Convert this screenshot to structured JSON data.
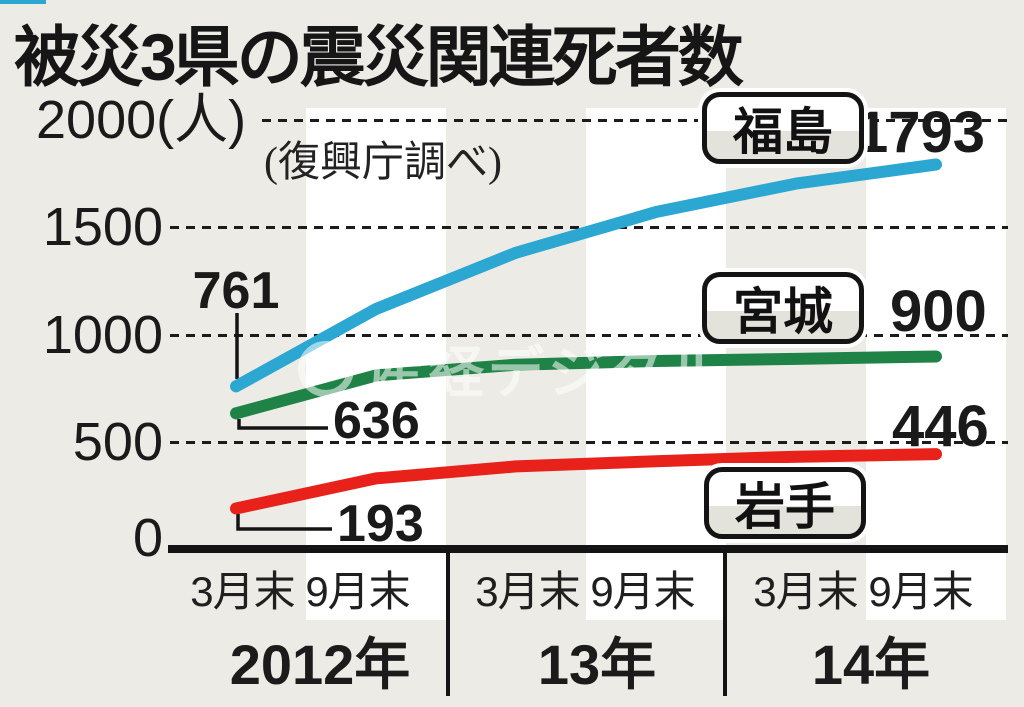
{
  "title": "被災3県の震災関連死者数",
  "source_note": "(復興庁調べ)",
  "watermark": "産経デジタル",
  "y_axis": {
    "labels": [
      "2000(人)",
      "1500",
      "1000",
      "500",
      "0"
    ]
  },
  "x_axis": {
    "tick_row": [
      "3月末 9月末",
      "3月末 9月末",
      "3月末 9月末"
    ],
    "year_row": [
      "2012年",
      "13年",
      "14年"
    ]
  },
  "annotations": {
    "fukushima_start": "761",
    "fukushima_end": "1793",
    "miyagi_start": "636",
    "miyagi_end": "900",
    "iwate_start": "193",
    "iwate_end": "446"
  },
  "colors": {
    "background": "#ECEBE5",
    "stripe": "#FFFFFF",
    "fukushima_line": "#2BA7D2",
    "miyagi_line": "#1F8347",
    "iwate_line": "#E8211A",
    "ink": "#1A1A1A"
  },
  "chart_data": {
    "type": "line",
    "title": "被災3県の震災関連死者数",
    "source": "(復興庁調べ)",
    "unit": "人",
    "categories": [
      "2012年3月末",
      "2012年9月末",
      "2013年3月末",
      "2013年9月末",
      "2014年3月末",
      "2014年9月末"
    ],
    "series": [
      {
        "name": "福島",
        "color": "#2BA7D2",
        "values": [
          761,
          1121,
          1383,
          1572,
          1704,
          1793
        ]
      },
      {
        "name": "宮城",
        "color": "#1F8347",
        "values": [
          636,
          812,
          862,
          879,
          889,
          900
        ]
      },
      {
        "name": "岩手",
        "color": "#E8211A",
        "values": [
          193,
          333,
          389,
          413,
          434,
          446
        ]
      }
    ],
    "ylim": [
      0,
      2000
    ],
    "yticks": [
      0,
      500,
      1000,
      1500,
      2000
    ],
    "grid": "horizontal dotted",
    "legend_position": "inline boxed labels at right of plot"
  }
}
